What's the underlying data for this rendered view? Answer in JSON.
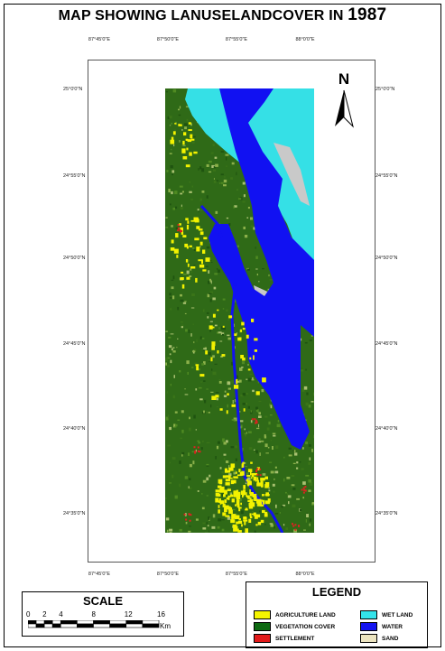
{
  "title": {
    "text": "MAP SHOWING LANUSELANDCOVER IN",
    "year": "1987"
  },
  "north_arrow": {
    "label": "N"
  },
  "coords": {
    "top": [
      "87°45'0\"E",
      "87°50'0\"E",
      "87°55'0\"E",
      "88°0'0\"E"
    ],
    "bottom": [
      "87°45'0\"E",
      "87°50'0\"E",
      "87°55'0\"E",
      "88°0'0\"E"
    ],
    "left": [
      "25°0'0\"N",
      "24°55'0\"N",
      "24°50'0\"N",
      "24°45'0\"N",
      "24°40'0\"N",
      "24°35'0\"N"
    ],
    "right": [
      "25°0'0\"N",
      "24°55'0\"N",
      "24°50'0\"N",
      "24°45'0\"N",
      "24°40'0\"N",
      "24°35'0\"N"
    ]
  },
  "scale": {
    "title": "SCALE",
    "labels": [
      "0",
      "2",
      "4",
      "8",
      "12",
      "16"
    ],
    "values_km": [
      0,
      2,
      4,
      8,
      12,
      16
    ],
    "unit": "Km"
  },
  "legend": {
    "title": "LEGEND",
    "items": [
      {
        "label": "AGRICULTURE LAND",
        "color": "#f5f500"
      },
      {
        "label": "VEGETATION COVER",
        "color": "#0e6a12"
      },
      {
        "label": "SETTLEMENT",
        "color": "#e21a1a"
      },
      {
        "label": "WET LAND",
        "color": "#33e3ea"
      },
      {
        "label": "WATER",
        "color": "#1414f0"
      },
      {
        "label": "SAND",
        "color": "#ece4c0"
      }
    ]
  },
  "map_colors": {
    "vegetation": "#2f6a17",
    "agriculture": "#f3f200",
    "settlement": "#e02020",
    "wetland": "#35e0e6",
    "water": "#1111f2",
    "sand": "#c9c9c9"
  }
}
